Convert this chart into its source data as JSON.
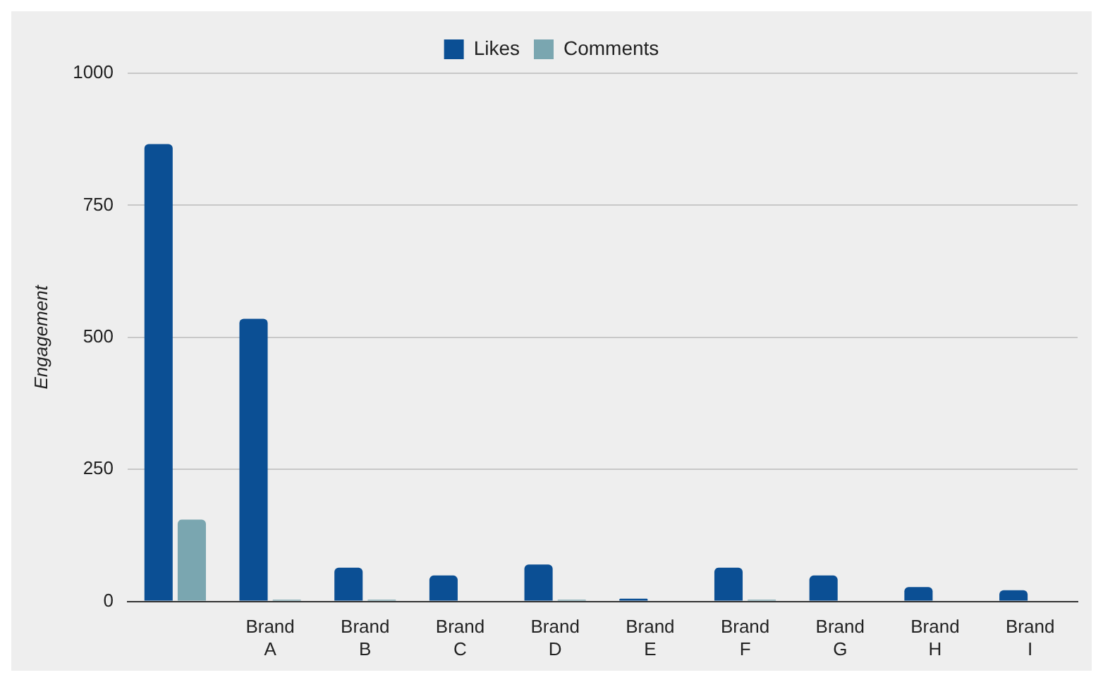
{
  "chart_data": {
    "type": "bar",
    "ylabel": "Engagement",
    "categories": [
      null,
      "Brand A",
      "Brand B",
      "Brand C",
      "Brand D",
      "Brand E",
      "Brand F",
      "Brand G",
      "Brand H",
      "Brand I"
    ],
    "series": [
      {
        "name": "Likes",
        "color": "#0b4f94",
        "values": [
          866,
          535,
          64,
          49,
          70,
          5,
          64,
          49,
          27,
          21
        ]
      },
      {
        "name": "Comments",
        "color": "#7aa6b0",
        "values": [
          155,
          3,
          3,
          0,
          3,
          0,
          3,
          0,
          0,
          0
        ]
      }
    ],
    "ylim": [
      0,
      1000
    ],
    "yticks": [
      0,
      250,
      500,
      750,
      1000
    ],
    "grid": "y",
    "legend": "top"
  }
}
